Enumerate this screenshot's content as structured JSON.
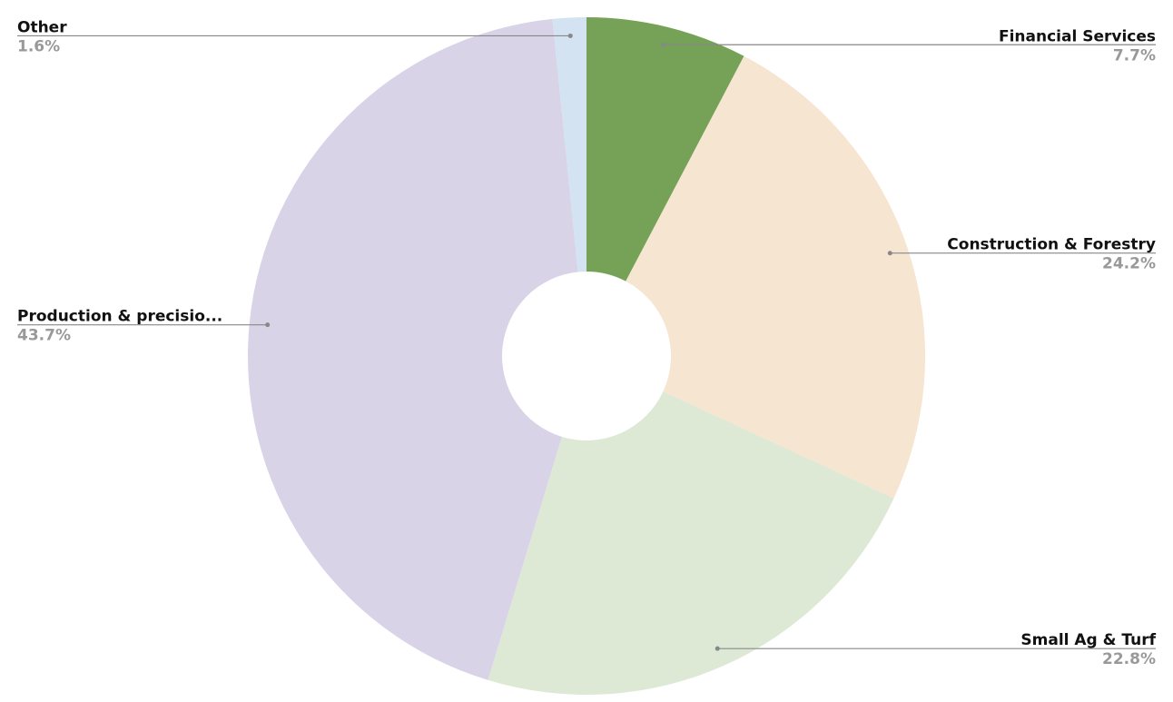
{
  "chart_data": {
    "type": "pie",
    "categories": [
      "Financial Services",
      "Construction & Forestry",
      "Small Ag & Turf",
      "Production & precisio...",
      "Other"
    ],
    "values": [
      7.7,
      24.2,
      22.8,
      43.7,
      1.6
    ],
    "value_labels": [
      "7.7%",
      "24.2%",
      "22.8%",
      "43.7%",
      "1.6%"
    ],
    "colors": [
      "#76a257",
      "#f6e5d0",
      "#dde9d5",
      "#d9d3e8",
      "#d3e3f2"
    ]
  }
}
